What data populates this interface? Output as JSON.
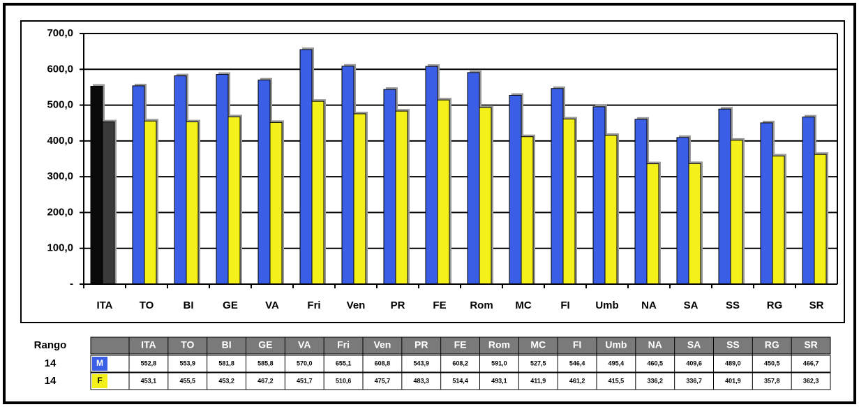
{
  "chart_data": {
    "type": "bar",
    "categories": [
      "ITA",
      "TO",
      "BI",
      "GE",
      "VA",
      "Fri",
      "Ven",
      "PR",
      "FE",
      "Rom",
      "MC",
      "FI",
      "Umb",
      "NA",
      "SA",
      "SS",
      "RG",
      "SR"
    ],
    "series": [
      {
        "name": "M",
        "color": "#3b5ee6",
        "colors": [
          "#0a0a0a",
          "#3b5ee6",
          "#3b5ee6",
          "#3b5ee6",
          "#3b5ee6",
          "#3b5ee6",
          "#3b5ee6",
          "#3b5ee6",
          "#3b5ee6",
          "#3b5ee6",
          "#3b5ee6",
          "#3b5ee6",
          "#3b5ee6",
          "#3b5ee6",
          "#3b5ee6",
          "#3b5ee6",
          "#3b5ee6",
          "#3b5ee6"
        ],
        "values": [
          552.8,
          553.9,
          581.8,
          585.8,
          570.0,
          655.1,
          608.8,
          543.9,
          608.2,
          591.0,
          527.5,
          546.4,
          495.4,
          460.5,
          409.6,
          489.0,
          450.5,
          466.7
        ],
        "value_labels": [
          "552,8",
          "553,9",
          "581,8",
          "585,8",
          "570,0",
          "655,1",
          "608,8",
          "543,9",
          "608,2",
          "591,0",
          "527,5",
          "546,4",
          "495,4",
          "460,5",
          "409,6",
          "489,0",
          "450,5",
          "466,7"
        ]
      },
      {
        "name": "F",
        "color": "#f4f01a",
        "colors": [
          "#3a3a3a",
          "#f4f01a",
          "#f4f01a",
          "#f4f01a",
          "#f4f01a",
          "#f4f01a",
          "#f4f01a",
          "#f4f01a",
          "#f4f01a",
          "#f4f01a",
          "#f4f01a",
          "#f4f01a",
          "#f4f01a",
          "#f4f01a",
          "#f4f01a",
          "#f4f01a",
          "#f4f01a",
          "#f4f01a"
        ],
        "values": [
          453.1,
          455.5,
          453.2,
          467.2,
          451.7,
          510.6,
          475.7,
          483.3,
          514.4,
          493.1,
          411.9,
          461.2,
          415.5,
          336.2,
          336.7,
          401.9,
          357.8,
          362.3
        ],
        "value_labels": [
          "453,1",
          "455,5",
          "453,2",
          "467,2",
          "451,7",
          "510,6",
          "475,7",
          "483,3",
          "514,4",
          "493,1",
          "411,9",
          "461,2",
          "415,5",
          "336,2",
          "336,7",
          "401,9",
          "357,8",
          "362,3"
        ]
      }
    ],
    "ylim": [
      0,
      700
    ],
    "yticks": [
      {
        "value": 0,
        "label": "-"
      },
      {
        "value": 100,
        "label": "100,0"
      },
      {
        "value": 200,
        "label": "200,0"
      },
      {
        "value": 300,
        "label": "300,0"
      },
      {
        "value": 400,
        "label": "400,0"
      },
      {
        "value": 500,
        "label": "500,0"
      },
      {
        "value": 600,
        "label": "600,0"
      },
      {
        "value": 700,
        "label": "700,0"
      }
    ],
    "grid": true,
    "table": {
      "header": "Rango",
      "ranks": [
        14,
        14
      ]
    }
  }
}
